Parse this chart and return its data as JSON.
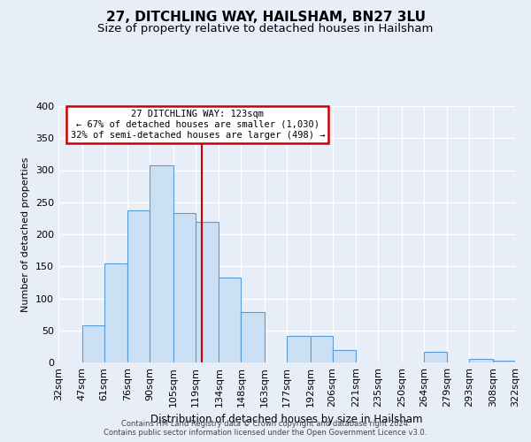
{
  "title": "27, DITCHLING WAY, HAILSHAM, BN27 3LU",
  "subtitle": "Size of property relative to detached houses in Hailsham",
  "xlabel": "Distribution of detached houses by size in Hailsham",
  "ylabel": "Number of detached properties",
  "bar_labels": [
    "32sqm",
    "47sqm",
    "61sqm",
    "76sqm",
    "90sqm",
    "105sqm",
    "119sqm",
    "134sqm",
    "148sqm",
    "163sqm",
    "177sqm",
    "192sqm",
    "206sqm",
    "221sqm",
    "235sqm",
    "250sqm",
    "264sqm",
    "279sqm",
    "293sqm",
    "308sqm",
    "322sqm"
  ],
  "bin_edges": [
    32,
    47,
    61,
    76,
    90,
    105,
    119,
    134,
    148,
    163,
    177,
    192,
    206,
    221,
    235,
    250,
    264,
    279,
    293,
    308,
    322
  ],
  "bar_values": [
    0,
    58,
    155,
    237,
    307,
    233,
    220,
    133,
    78,
    0,
    42,
    42,
    20,
    0,
    0,
    0,
    16,
    0,
    5,
    3
  ],
  "bar_facecolor": "#cce0f5",
  "bar_edgecolor": "#5b9bd5",
  "property_value": 123,
  "vline_color": "#cc0000",
  "annotation_line1": "27 DITCHLING WAY: 123sqm",
  "annotation_line2": "← 67% of detached houses are smaller (1,030)",
  "annotation_line3": "32% of semi-detached houses are larger (498) →",
  "annotation_box_facecolor": "white",
  "annotation_box_edgecolor": "#cc0000",
  "ylim": [
    0,
    400
  ],
  "yticks": [
    0,
    50,
    100,
    150,
    200,
    250,
    300,
    350,
    400
  ],
  "bg_color": "#e8eef7",
  "grid_color": "white",
  "footer_line1": "Contains HM Land Registry data © Crown copyright and database right 2024.",
  "footer_line2": "Contains public sector information licensed under the Open Government Licence v3.0.",
  "title_fontsize": 11,
  "subtitle_fontsize": 9.5
}
